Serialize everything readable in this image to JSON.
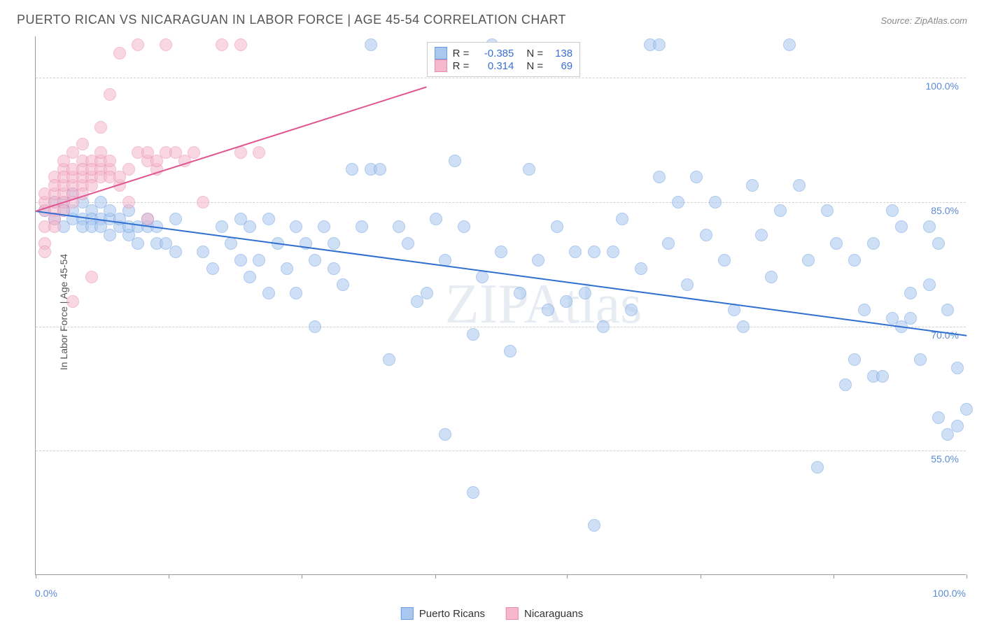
{
  "title": "PUERTO RICAN VS NICARAGUAN IN LABOR FORCE | AGE 45-54 CORRELATION CHART",
  "source": "Source: ZipAtlas.com",
  "y_axis_label": "In Labor Force | Age 45-54",
  "watermark": "ZIPAtlas",
  "chart": {
    "type": "scatter",
    "background_color": "#ffffff",
    "grid_color": "#d0d0d0",
    "axis_color": "#999999",
    "xlim": [
      0,
      100
    ],
    "ylim": [
      40,
      105
    ],
    "y_ticks": [
      55.0,
      70.0,
      85.0,
      100.0
    ],
    "y_tick_labels": [
      "55.0%",
      "70.0%",
      "85.0%",
      "100.0%"
    ],
    "x_min_label": "0.0%",
    "x_max_label": "100.0%",
    "x_tick_positions": [
      0,
      14.3,
      28.6,
      42.9,
      57.1,
      71.4,
      85.7,
      100
    ],
    "marker_radius": 9,
    "marker_opacity": 0.55,
    "series": [
      {
        "name": "Puerto Ricans",
        "fill_color": "#a9c8f0",
        "stroke_color": "#6a9de0",
        "trend_color": "#2f6fd0",
        "R": "-0.385",
        "N": "138",
        "trend": {
          "x1": 0,
          "y1": 84,
          "x2": 100,
          "y2": 69
        },
        "points": [
          [
            1,
            84
          ],
          [
            2,
            85
          ],
          [
            2,
            83
          ],
          [
            3,
            84
          ],
          [
            3,
            82
          ],
          [
            3,
            85
          ],
          [
            4,
            83
          ],
          [
            4,
            84
          ],
          [
            4,
            86
          ],
          [
            5,
            83
          ],
          [
            5,
            85
          ],
          [
            5,
            82
          ],
          [
            6,
            84
          ],
          [
            6,
            83
          ],
          [
            6,
            82
          ],
          [
            7,
            85
          ],
          [
            7,
            83
          ],
          [
            7,
            82
          ],
          [
            8,
            83
          ],
          [
            8,
            81
          ],
          [
            8,
            84
          ],
          [
            9,
            82
          ],
          [
            9,
            83
          ],
          [
            10,
            81
          ],
          [
            10,
            82
          ],
          [
            10,
            84
          ],
          [
            11,
            82
          ],
          [
            11,
            80
          ],
          [
            12,
            82
          ],
          [
            12,
            83
          ],
          [
            13,
            80
          ],
          [
            13,
            82
          ],
          [
            14,
            80
          ],
          [
            15,
            83
          ],
          [
            15,
            79
          ],
          [
            18,
            79
          ],
          [
            19,
            77
          ],
          [
            20,
            82
          ],
          [
            21,
            80
          ],
          [
            22,
            78
          ],
          [
            22,
            83
          ],
          [
            23,
            82
          ],
          [
            23,
            76
          ],
          [
            24,
            78
          ],
          [
            25,
            83
          ],
          [
            25,
            74
          ],
          [
            26,
            80
          ],
          [
            27,
            77
          ],
          [
            28,
            82
          ],
          [
            28,
            74
          ],
          [
            29,
            80
          ],
          [
            30,
            78
          ],
          [
            30,
            70
          ],
          [
            31,
            82
          ],
          [
            32,
            77
          ],
          [
            32,
            80
          ],
          [
            33,
            75
          ],
          [
            34,
            89
          ],
          [
            35,
            82
          ],
          [
            36,
            89
          ],
          [
            36,
            104
          ],
          [
            37,
            89
          ],
          [
            38,
            66
          ],
          [
            39,
            82
          ],
          [
            40,
            80
          ],
          [
            41,
            73
          ],
          [
            42,
            74
          ],
          [
            43,
            83
          ],
          [
            44,
            57
          ],
          [
            44,
            78
          ],
          [
            45,
            90
          ],
          [
            46,
            82
          ],
          [
            47,
            69
          ],
          [
            47,
            50
          ],
          [
            48,
            76
          ],
          [
            49,
            104
          ],
          [
            50,
            79
          ],
          [
            51,
            67
          ],
          [
            52,
            74
          ],
          [
            53,
            89
          ],
          [
            54,
            78
          ],
          [
            55,
            72
          ],
          [
            56,
            82
          ],
          [
            57,
            73
          ],
          [
            58,
            79
          ],
          [
            59,
            74
          ],
          [
            60,
            79
          ],
          [
            60,
            46
          ],
          [
            61,
            70
          ],
          [
            62,
            79
          ],
          [
            63,
            83
          ],
          [
            64,
            72
          ],
          [
            65,
            77
          ],
          [
            66,
            104
          ],
          [
            67,
            88
          ],
          [
            67,
            104
          ],
          [
            68,
            80
          ],
          [
            69,
            85
          ],
          [
            70,
            75
          ],
          [
            71,
            88
          ],
          [
            72,
            81
          ],
          [
            73,
            85
          ],
          [
            74,
            78
          ],
          [
            75,
            72
          ],
          [
            76,
            70
          ],
          [
            77,
            87
          ],
          [
            78,
            81
          ],
          [
            79,
            76
          ],
          [
            80,
            84
          ],
          [
            81,
            104
          ],
          [
            82,
            87
          ],
          [
            83,
            78
          ],
          [
            84,
            53
          ],
          [
            85,
            84
          ],
          [
            86,
            80
          ],
          [
            87,
            63
          ],
          [
            88,
            66
          ],
          [
            88,
            78
          ],
          [
            89,
            72
          ],
          [
            90,
            64
          ],
          [
            90,
            80
          ],
          [
            91,
            64
          ],
          [
            92,
            71
          ],
          [
            92,
            84
          ],
          [
            93,
            70
          ],
          [
            93,
            82
          ],
          [
            94,
            74
          ],
          [
            94,
            71
          ],
          [
            95,
            66
          ],
          [
            96,
            75
          ],
          [
            96,
            82
          ],
          [
            97,
            59
          ],
          [
            97,
            80
          ],
          [
            98,
            57
          ],
          [
            98,
            72
          ],
          [
            99,
            58
          ],
          [
            99,
            65
          ],
          [
            100,
            60
          ]
        ]
      },
      {
        "name": "Nicaraguans",
        "fill_color": "#f5b8cc",
        "stroke_color": "#e88aab",
        "trend_color": "#e05590",
        "R": "0.314",
        "N": "69",
        "trend": {
          "x1": 0,
          "y1": 84,
          "x2": 42,
          "y2": 99
        },
        "points": [
          [
            1,
            84
          ],
          [
            1,
            85
          ],
          [
            1,
            86
          ],
          [
            1,
            82
          ],
          [
            1,
            80
          ],
          [
            1,
            79
          ],
          [
            2,
            85
          ],
          [
            2,
            86
          ],
          [
            2,
            84
          ],
          [
            2,
            88
          ],
          [
            2,
            83
          ],
          [
            2,
            82
          ],
          [
            2,
            87
          ],
          [
            3,
            85
          ],
          [
            3,
            86
          ],
          [
            3,
            89
          ],
          [
            3,
            87
          ],
          [
            3,
            90
          ],
          [
            3,
            88
          ],
          [
            3,
            84
          ],
          [
            4,
            86
          ],
          [
            4,
            87
          ],
          [
            4,
            91
          ],
          [
            4,
            88
          ],
          [
            4,
            89
          ],
          [
            4,
            85
          ],
          [
            4,
            73
          ],
          [
            5,
            87
          ],
          [
            5,
            88
          ],
          [
            5,
            90
          ],
          [
            5,
            89
          ],
          [
            5,
            92
          ],
          [
            5,
            86
          ],
          [
            6,
            88
          ],
          [
            6,
            90
          ],
          [
            6,
            87
          ],
          [
            6,
            89
          ],
          [
            6,
            76
          ],
          [
            7,
            89
          ],
          [
            7,
            88
          ],
          [
            7,
            90
          ],
          [
            7,
            91
          ],
          [
            7,
            94
          ],
          [
            8,
            89
          ],
          [
            8,
            90
          ],
          [
            8,
            88
          ],
          [
            8,
            98
          ],
          [
            9,
            103
          ],
          [
            9,
            87
          ],
          [
            9,
            88
          ],
          [
            10,
            89
          ],
          [
            10,
            85
          ],
          [
            11,
            104
          ],
          [
            11,
            91
          ],
          [
            12,
            90
          ],
          [
            12,
            91
          ],
          [
            12,
            83
          ],
          [
            13,
            89
          ],
          [
            13,
            90
          ],
          [
            14,
            91
          ],
          [
            14,
            104
          ],
          [
            15,
            91
          ],
          [
            16,
            90
          ],
          [
            17,
            91
          ],
          [
            18,
            85
          ],
          [
            20,
            104
          ],
          [
            22,
            104
          ],
          [
            22,
            91
          ],
          [
            24,
            91
          ]
        ]
      }
    ]
  },
  "legend": {
    "series1": "Puerto Ricans",
    "series2": "Nicaraguans"
  }
}
